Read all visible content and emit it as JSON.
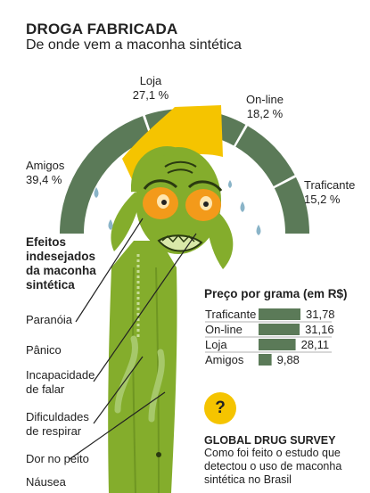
{
  "header": {
    "title": "DROGA FABRICADA",
    "subtitle": "De onde vem a maconha sintética"
  },
  "colors": {
    "green": "#5b7a58",
    "yellow": "#f5c400",
    "face": "#84ad2c",
    "eyes": "#f39a1a",
    "tears": "#8ab4c8"
  },
  "chart_data": [
    {
      "type": "pie",
      "title": "De onde vem a maconha sintética",
      "categories": [
        "Amigos",
        "Loja",
        "On-line",
        "Traficante"
      ],
      "values": [
        39.4,
        27.1,
        18.2,
        15.2
      ],
      "value_labels": [
        "39,4 %",
        "27,1 %",
        "18,2 %",
        "15,2 %"
      ]
    },
    {
      "type": "bar",
      "title": "Preço por grama (em R$)",
      "categories": [
        "Traficante",
        "On-line",
        "Loja",
        "Amigos"
      ],
      "values": [
        31.78,
        31.16,
        28.11,
        9.88
      ],
      "value_labels": [
        "31,78",
        "31,16",
        "28,11",
        "9,88"
      ]
    }
  ],
  "effects": {
    "heading_lines": [
      "Efeitos",
      "indesejados",
      "da maconha",
      "sintética"
    ],
    "items": [
      "Paranóia",
      "Pânico",
      "Incapacidade de falar",
      "Dificuldades de respirar",
      "Dor no peito",
      "Náusea"
    ],
    "lines": [
      [
        "Incapacidade",
        "de falar"
      ],
      [
        "Dificuldades",
        "de respirar"
      ]
    ]
  },
  "survey": {
    "badge": "?",
    "title": "GLOBAL DRUG SURVEY",
    "lines": [
      "Como foi feito o estudo que",
      "detectou o uso de maconha",
      "sintética no Brasil"
    ]
  }
}
